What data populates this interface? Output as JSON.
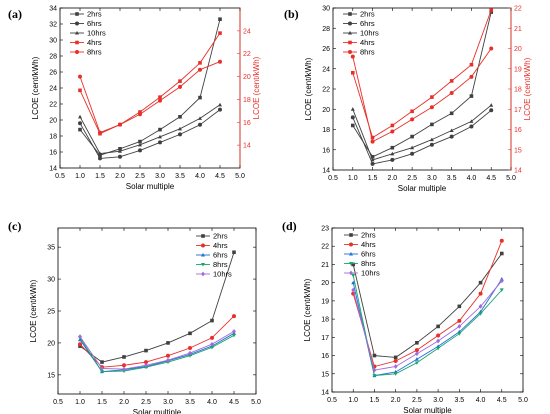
{
  "chart_data": [
    {
      "type": "line",
      "panel_label": "(a)",
      "xlabel": "Solar multiple",
      "ylabel": "LCOE (cent/kWh)",
      "ylabel_right": "LCOE (cent/kWh)",
      "xlim": [
        0.5,
        5.0
      ],
      "ylim": [
        14,
        34
      ],
      "ylim_right": [
        12,
        26
      ],
      "xticks": [
        "0.5",
        "1.0",
        "1.5",
        "2.0",
        "2.5",
        "3.0",
        "3.5",
        "4.0",
        "4.5",
        "5.0"
      ],
      "yticks": [
        "14",
        "16",
        "18",
        "20",
        "22",
        "24",
        "26",
        "28",
        "30",
        "32",
        "34"
      ],
      "yticks_right": [
        "14",
        "16",
        "18",
        "20",
        "22",
        "24"
      ],
      "legend_position": "top-left",
      "x": [
        1.0,
        1.5,
        2.0,
        2.5,
        3.0,
        3.5,
        4.0,
        4.5
      ],
      "series": [
        {
          "name": "2hrs",
          "color": "#404040",
          "marker": "square",
          "axis": "left",
          "values": [
            18.8,
            15.6,
            16.4,
            17.3,
            18.8,
            20.4,
            22.8,
            32.6
          ]
        },
        {
          "name": "6hrs",
          "color": "#404040",
          "marker": "circle",
          "axis": "left",
          "values": [
            19.6,
            15.2,
            15.4,
            16.2,
            17.2,
            18.2,
            19.4,
            21.3
          ]
        },
        {
          "name": "10hrs",
          "color": "#404040",
          "marker": "triangle",
          "axis": "left",
          "values": [
            20.4,
            15.8,
            16.1,
            16.9,
            17.9,
            18.9,
            20.2,
            21.9
          ]
        },
        {
          "name": "4hrs",
          "color": "#e8302a",
          "marker": "square",
          "axis": "right",
          "values": [
            18.8,
            15.0,
            15.8,
            16.9,
            18.2,
            19.6,
            21.2,
            23.8
          ]
        },
        {
          "name": "8hrs",
          "color": "#e8302a",
          "marker": "circle",
          "axis": "right",
          "values": [
            20.0,
            15.1,
            15.8,
            16.7,
            17.9,
            19.1,
            20.6,
            21.3
          ]
        }
      ]
    },
    {
      "type": "line",
      "panel_label": "(b)",
      "xlabel": "Solar multiple",
      "ylabel": "LCOE (cent/kWh)",
      "ylabel_right": "LCOE (cent/kWh)",
      "xlim": [
        0.5,
        5.0
      ],
      "ylim": [
        14,
        30
      ],
      "ylim_right": [
        14,
        22
      ],
      "xticks": [
        "0.5",
        "1.0",
        "1.5",
        "2.0",
        "2.5",
        "3.0",
        "3.5",
        "4.0",
        "4.5",
        "5.0"
      ],
      "yticks": [
        "14",
        "16",
        "18",
        "20",
        "22",
        "24",
        "26",
        "28",
        "30"
      ],
      "yticks_right": [
        "14",
        "15",
        "16",
        "17",
        "18",
        "19",
        "20",
        "21",
        "22"
      ],
      "legend_position": "top-left",
      "x": [
        1.0,
        1.5,
        2.0,
        2.5,
        3.0,
        3.5,
        4.0,
        4.5
      ],
      "series": [
        {
          "name": "2hrs",
          "color": "#404040",
          "marker": "square",
          "axis": "left",
          "values": [
            18.4,
            15.3,
            16.2,
            17.3,
            18.5,
            19.6,
            21.3,
            29.6
          ]
        },
        {
          "name": "6hrs",
          "color": "#404040",
          "marker": "circle",
          "axis": "left",
          "values": [
            19.2,
            14.6,
            15.0,
            15.6,
            16.5,
            17.3,
            18.3,
            19.9
          ]
        },
        {
          "name": "10hrs",
          "color": "#404040",
          "marker": "triangle",
          "axis": "left",
          "values": [
            20.0,
            15.0,
            15.6,
            16.2,
            17.0,
            17.9,
            18.8,
            20.4
          ]
        },
        {
          "name": "4hrs",
          "color": "#e8302a",
          "marker": "square",
          "axis": "right",
          "values": [
            18.8,
            15.6,
            16.2,
            16.9,
            17.6,
            18.4,
            19.2,
            21.9
          ]
        },
        {
          "name": "8hrs",
          "color": "#e8302a",
          "marker": "circle",
          "axis": "right",
          "values": [
            19.6,
            15.4,
            15.9,
            16.5,
            17.1,
            17.8,
            18.6,
            20.0
          ]
        }
      ]
    },
    {
      "type": "line",
      "panel_label": "(c)",
      "xlabel": "Solar multiple",
      "ylabel": "LCOE (cent/kWh)",
      "xlim": [
        0.5,
        5.0
      ],
      "ylim": [
        12,
        38
      ],
      "xticks": [
        "0.5",
        "1.0",
        "1.5",
        "2.0",
        "2.5",
        "3.0",
        "3.5",
        "4.0",
        "4.5",
        "5.0"
      ],
      "yticks": [
        "15",
        "20",
        "25",
        "30",
        "35"
      ],
      "legend_position": "top-right",
      "x": [
        1.0,
        1.5,
        2.0,
        2.5,
        3.0,
        3.5,
        4.0,
        4.5
      ],
      "series": [
        {
          "name": "2hrs",
          "color": "#404040",
          "marker": "square",
          "values": [
            19.5,
            17.0,
            17.8,
            18.8,
            20.0,
            21.5,
            23.5,
            34.2
          ]
        },
        {
          "name": "4hrs",
          "color": "#e8302a",
          "marker": "circle",
          "values": [
            19.8,
            16.2,
            16.5,
            17.0,
            18.0,
            19.2,
            20.8,
            24.2
          ]
        },
        {
          "name": "6hrs",
          "color": "#1f6fd6",
          "marker": "triangle",
          "values": [
            20.5,
            15.5,
            15.8,
            16.3,
            17.2,
            18.2,
            19.5,
            21.5
          ]
        },
        {
          "name": "8hrs",
          "color": "#19a56b",
          "marker": "triangle-down",
          "values": [
            20.8,
            15.5,
            15.6,
            16.2,
            17.0,
            18.0,
            19.3,
            21.2
          ]
        },
        {
          "name": "10hrs",
          "color": "#a36bd8",
          "marker": "diamond",
          "values": [
            21.0,
            16.0,
            15.9,
            16.5,
            17.3,
            18.4,
            19.8,
            21.8
          ]
        }
      ]
    },
    {
      "type": "line",
      "panel_label": "(d)",
      "xlabel": "Solar multiple",
      "ylabel": "LCOE (cent/kWh)",
      "xlim": [
        0.5,
        5.0
      ],
      "ylim": [
        14,
        23
      ],
      "xticks": [
        "0.5",
        "1.0",
        "1.5",
        "2.0",
        "2.5",
        "3.0",
        "3.5",
        "4.0",
        "4.5",
        "5.0"
      ],
      "yticks": [
        "14",
        "15",
        "16",
        "17",
        "18",
        "19",
        "20",
        "21",
        "22",
        "23"
      ],
      "legend_position": "top-left",
      "x": [
        1.0,
        1.5,
        2.0,
        2.5,
        3.0,
        3.5,
        4.0,
        4.5
      ],
      "series": [
        {
          "name": "2hrs",
          "color": "#404040",
          "marker": "square",
          "values": [
            21.0,
            16.0,
            15.9,
            16.7,
            17.6,
            18.7,
            20.0,
            21.6
          ]
        },
        {
          "name": "4hrs",
          "color": "#e8302a",
          "marker": "circle",
          "values": [
            19.4,
            15.4,
            15.7,
            16.3,
            17.1,
            17.9,
            19.4,
            22.3
          ]
        },
        {
          "name": "6hrs",
          "color": "#1f6fd6",
          "marker": "triangle",
          "values": [
            20.0,
            14.9,
            15.1,
            15.8,
            16.5,
            17.3,
            18.4,
            20.2
          ]
        },
        {
          "name": "8hrs",
          "color": "#19a56b",
          "marker": "triangle-down",
          "values": [
            20.4,
            14.9,
            15.0,
            15.6,
            16.4,
            17.2,
            18.3,
            19.6
          ]
        },
        {
          "name": "10hrs",
          "color": "#a36bd8",
          "marker": "diamond",
          "values": [
            19.6,
            15.2,
            15.4,
            16.1,
            16.8,
            17.6,
            18.7,
            20.1
          ]
        }
      ]
    }
  ]
}
